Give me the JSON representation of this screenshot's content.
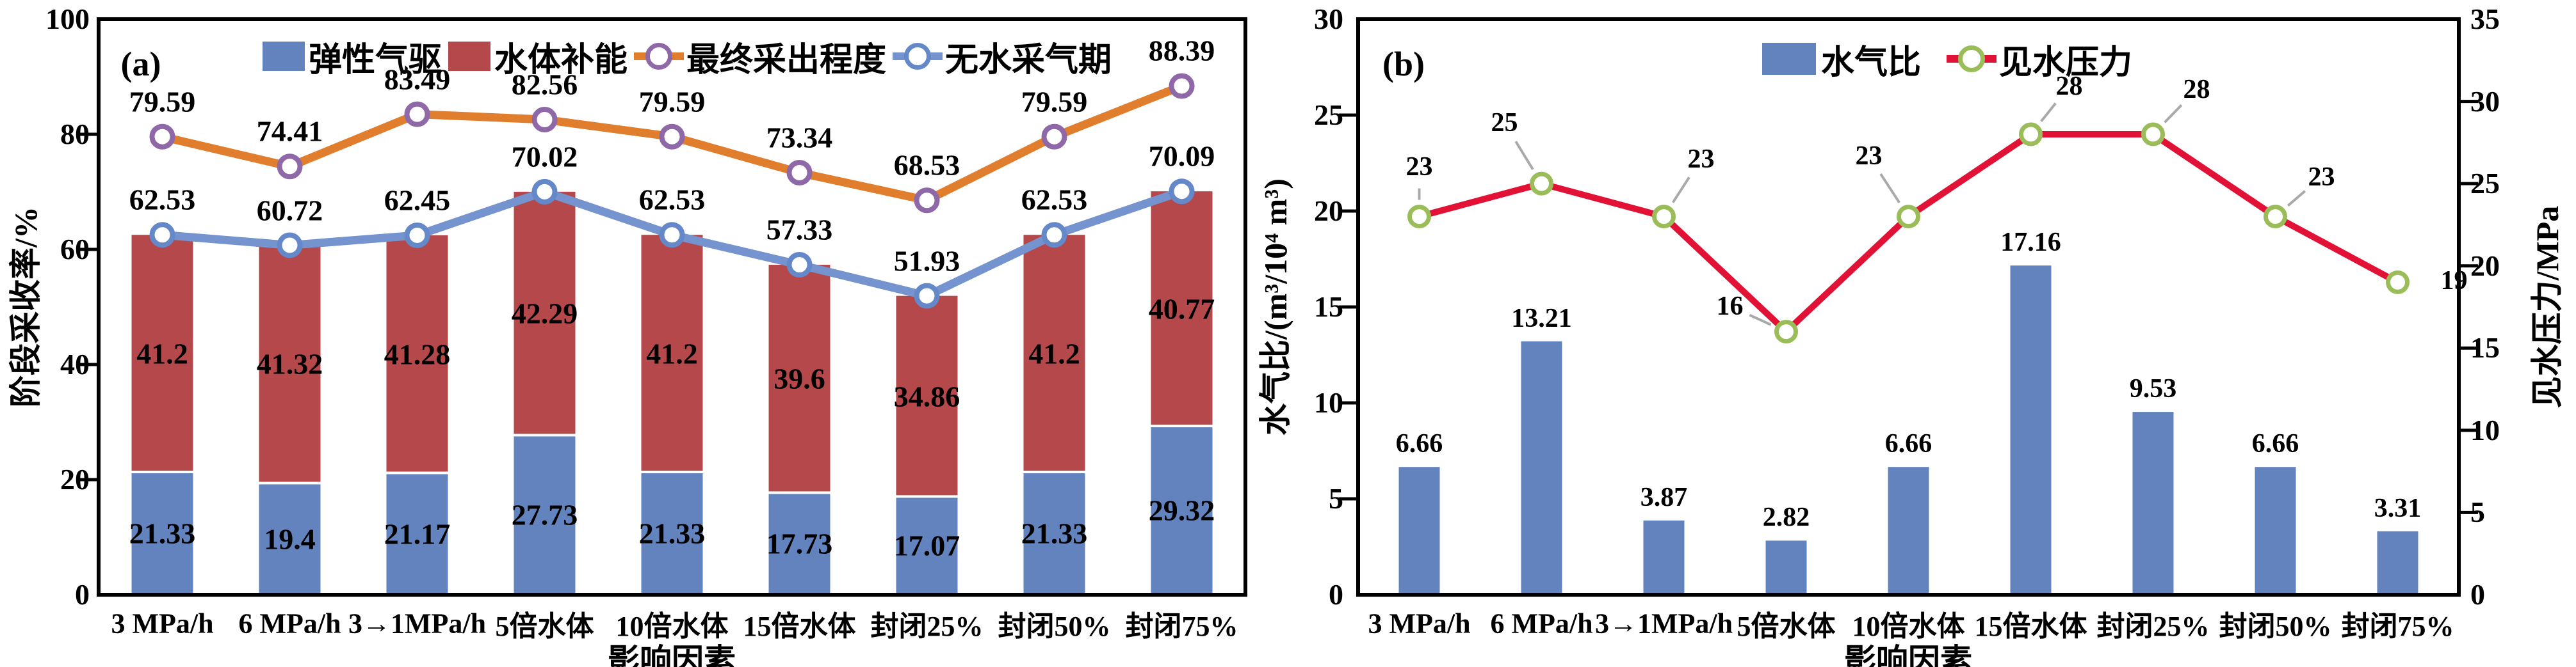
{
  "figure": {
    "panel_a_tag": "(a)",
    "panel_b_tag": "(b)",
    "colors": {
      "bar_blue": "#6383BE",
      "bar_red": "#B4484B",
      "line_orange": "#E07E2E",
      "marker_purple": "#8F68A8",
      "line_blue": "#7593CE",
      "marker_blue": "#6588C8",
      "line_red": "#E11236",
      "marker_green": "#9ABD5A",
      "leader_gray": "#A9A9A9",
      "axis_black": "#000000"
    }
  },
  "chart_data": [
    {
      "id": "a",
      "type": "bar",
      "panel_tag": "(a)",
      "title": "",
      "xlabel": "影响因素",
      "ylabel": "阶段采收率/%",
      "ylim": [
        0,
        100
      ],
      "yticks": [
        0,
        20,
        40,
        60,
        80,
        100
      ],
      "grid": false,
      "legend_position": "top-inside",
      "categories": [
        "3 MPa/h",
        "6 MPa/h",
        "3→1MPa/h",
        "5倍水体",
        "10倍水体",
        "15倍水体",
        "封闭25%",
        "封闭50%",
        "封闭75%"
      ],
      "series": [
        {
          "name": "弹性气驱",
          "type": "bar-stack",
          "color": "#6383BE",
          "values": [
            21.33,
            19.4,
            21.17,
            27.73,
            21.33,
            17.73,
            17.07,
            21.33,
            29.32
          ]
        },
        {
          "name": "水体补能",
          "type": "bar-stack",
          "color": "#B4484B",
          "values": [
            41.2,
            41.32,
            41.28,
            42.29,
            41.2,
            39.6,
            34.86,
            41.2,
            40.77
          ]
        },
        {
          "name": "最终采出程度",
          "type": "line",
          "color": "#E07E2E",
          "marker_color": "#8F68A8",
          "values": [
            79.59,
            74.41,
            83.49,
            82.56,
            79.59,
            73.34,
            68.53,
            79.59,
            88.39
          ]
        },
        {
          "name": "无水采气期",
          "type": "line",
          "color": "#7593CE",
          "marker_color": "#6588C8",
          "values": [
            62.53,
            60.72,
            62.45,
            70.02,
            62.53,
            57.33,
            51.93,
            62.53,
            70.09
          ]
        }
      ]
    },
    {
      "id": "b",
      "type": "bar",
      "panel_tag": "(b)",
      "title": "",
      "xlabel": "影响因素",
      "ylabel_left": "水气比/(m³/10⁴ m³)",
      "ylabel_right": "见水压力/MPa",
      "ylim_left": [
        0,
        30
      ],
      "yticks_left": [
        0,
        5,
        10,
        15,
        20,
        25,
        30
      ],
      "ylim_right": [
        0,
        35
      ],
      "yticks_right": [
        0,
        5,
        10,
        15,
        20,
        25,
        30,
        35
      ],
      "grid": false,
      "legend_position": "top-inside",
      "categories": [
        "3 MPa/h",
        "6 MPa/h",
        "3→1MPa/h",
        "5倍水体",
        "10倍水体",
        "15倍水体",
        "封闭25%",
        "封闭50%",
        "封闭75%"
      ],
      "series": [
        {
          "name": "水气比",
          "type": "bar",
          "axis": "left",
          "color": "#6383BE",
          "values": [
            6.66,
            13.21,
            3.87,
            2.82,
            6.66,
            17.16,
            9.53,
            6.66,
            3.31
          ]
        },
        {
          "name": "见水压力",
          "type": "line",
          "axis": "right",
          "color": "#E11236",
          "marker_color": "#9ABD5A",
          "values": [
            23,
            25,
            23,
            16,
            23,
            28,
            28,
            23,
            19
          ],
          "label_offsets": [
            [
              0,
              -78
            ],
            [
              -58,
              -95
            ],
            [
              58,
              -90
            ],
            [
              -88,
              -40
            ],
            [
              -62,
              -95
            ],
            [
              60,
              -75
            ],
            [
              68,
              -70
            ],
            [
              72,
              -62
            ],
            [
              88,
              -2
            ]
          ],
          "label_leaders": [
            true,
            true,
            true,
            true,
            true,
            true,
            true,
            true,
            false
          ]
        }
      ]
    }
  ]
}
